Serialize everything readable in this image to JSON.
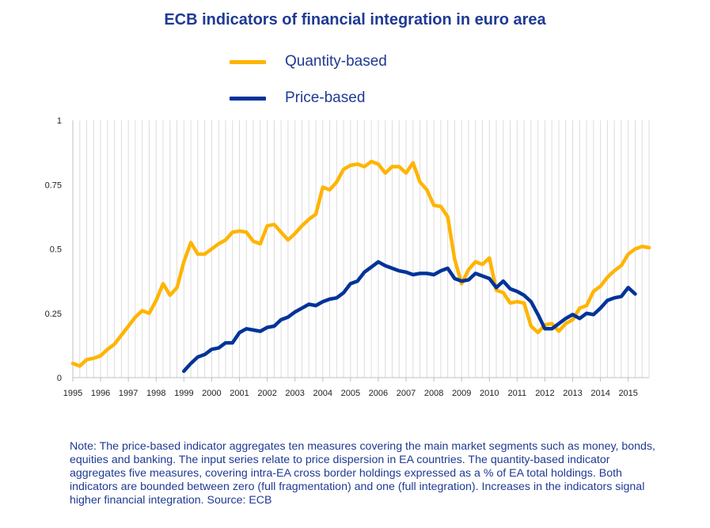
{
  "title": "ECB indicators of financial integration in euro area",
  "legend": [
    {
      "label": "Quantity-based",
      "color": "#FFB400"
    },
    {
      "label": "Price-based",
      "color": "#003399"
    }
  ],
  "note": "Note: The price-based indicator aggregates ten measures covering the main market segments such as money, bonds, equities and banking. The input series relate to price dispersion in EA countries. The quantity-based indicator aggregates five measures, covering intra-EA cross border holdings expressed as a % of EA total holdings. Both indicators are bounded between zero (full fragmentation) and one (full integration). Increases in the indicators signal higher financial integration. Source: ECB",
  "chart_data": {
    "type": "line",
    "title": "ECB indicators of financial integration in euro area",
    "xlabel": "",
    "ylabel": "",
    "xlim": [
      1995.0,
      2015.75
    ],
    "ylim": [
      0,
      1
    ],
    "yticks": [
      0,
      0.25,
      0.5,
      0.75,
      1
    ],
    "ytick_labels": [
      "0",
      "0.25",
      "0.5",
      "0.75",
      "1"
    ],
    "xticks": [
      1995,
      1996,
      1997,
      1998,
      1999,
      2000,
      2001,
      2002,
      2003,
      2004,
      2005,
      2006,
      2007,
      2008,
      2009,
      2010,
      2011,
      2012,
      2013,
      2014,
      2015
    ],
    "xtick_labels": [
      "1995",
      "1996",
      "1997",
      "1998",
      "1999",
      "2000",
      "2001",
      "2002",
      "2003",
      "2004",
      "2005",
      "2006",
      "2007",
      "2008",
      "2009",
      "2010",
      "2011",
      "2012",
      "2013",
      "2014",
      "2015"
    ],
    "grid": "vertical",
    "legend_position": "top-center",
    "series": [
      {
        "name": "Quantity-based",
        "color": "#FFB400",
        "x": [
          1995.0,
          1995.25,
          1995.5,
          1995.75,
          1996.0,
          1996.25,
          1996.5,
          1996.75,
          1997.0,
          1997.25,
          1997.5,
          1997.75,
          1998.0,
          1998.25,
          1998.5,
          1998.75,
          1999.0,
          1999.25,
          1999.5,
          1999.75,
          2000.0,
          2000.25,
          2000.5,
          2000.75,
          2001.0,
          2001.25,
          2001.5,
          2001.75,
          2002.0,
          2002.25,
          2002.5,
          2002.75,
          2003.0,
          2003.25,
          2003.5,
          2003.75,
          2004.0,
          2004.25,
          2004.5,
          2004.75,
          2005.0,
          2005.25,
          2005.5,
          2005.75,
          2006.0,
          2006.25,
          2006.5,
          2006.75,
          2007.0,
          2007.25,
          2007.5,
          2007.75,
          2008.0,
          2008.25,
          2008.5,
          2008.75,
          2009.0,
          2009.25,
          2009.5,
          2009.75,
          2010.0,
          2010.25,
          2010.5,
          2010.75,
          2011.0,
          2011.25,
          2011.5,
          2011.75,
          2012.0,
          2012.25,
          2012.5,
          2012.75,
          2013.0,
          2013.25,
          2013.5,
          2013.75,
          2014.0,
          2014.25,
          2014.5,
          2014.75,
          2015.0,
          2015.25,
          2015.5,
          2015.75
        ],
        "values": [
          0.055,
          0.045,
          0.07,
          0.075,
          0.085,
          0.11,
          0.13,
          0.165,
          0.2,
          0.235,
          0.26,
          0.25,
          0.3,
          0.365,
          0.32,
          0.35,
          0.45,
          0.525,
          0.48,
          0.48,
          0.5,
          0.52,
          0.535,
          0.565,
          0.57,
          0.565,
          0.53,
          0.52,
          0.59,
          0.595,
          0.565,
          0.535,
          0.56,
          0.59,
          0.615,
          0.635,
          0.74,
          0.73,
          0.76,
          0.81,
          0.825,
          0.83,
          0.82,
          0.84,
          0.83,
          0.795,
          0.82,
          0.82,
          0.795,
          0.835,
          0.76,
          0.73,
          0.67,
          0.665,
          0.625,
          0.46,
          0.365,
          0.42,
          0.45,
          0.44,
          0.465,
          0.34,
          0.33,
          0.29,
          0.295,
          0.29,
          0.2,
          0.175,
          0.205,
          0.21,
          0.18,
          0.21,
          0.225,
          0.27,
          0.28,
          0.335,
          0.355,
          0.39,
          0.415,
          0.435,
          0.48,
          0.5,
          0.51,
          0.505
        ]
      },
      {
        "name": "Price-based",
        "color": "#003399",
        "x": [
          1999.0,
          1999.25,
          1999.5,
          1999.75,
          2000.0,
          2000.25,
          2000.5,
          2000.75,
          2001.0,
          2001.25,
          2001.5,
          2001.75,
          2002.0,
          2002.25,
          2002.5,
          2002.75,
          2003.0,
          2003.25,
          2003.5,
          2003.75,
          2004.0,
          2004.25,
          2004.5,
          2004.75,
          2005.0,
          2005.25,
          2005.5,
          2005.75,
          2006.0,
          2006.25,
          2006.5,
          2006.75,
          2007.0,
          2007.25,
          2007.5,
          2007.75,
          2008.0,
          2008.25,
          2008.5,
          2008.75,
          2009.0,
          2009.25,
          2009.5,
          2009.75,
          2010.0,
          2010.25,
          2010.5,
          2010.75,
          2011.0,
          2011.25,
          2011.5,
          2011.75,
          2012.0,
          2012.25,
          2012.5,
          2012.75,
          2013.0,
          2013.25,
          2013.5,
          2013.75,
          2014.0,
          2014.25,
          2014.5,
          2014.75,
          2015.0,
          2015.25
        ],
        "values": [
          0.025,
          0.055,
          0.08,
          0.09,
          0.11,
          0.115,
          0.135,
          0.135,
          0.175,
          0.19,
          0.185,
          0.18,
          0.195,
          0.2,
          0.225,
          0.235,
          0.255,
          0.27,
          0.285,
          0.28,
          0.295,
          0.305,
          0.31,
          0.33,
          0.365,
          0.375,
          0.41,
          0.43,
          0.45,
          0.435,
          0.425,
          0.415,
          0.41,
          0.4,
          0.405,
          0.405,
          0.4,
          0.415,
          0.425,
          0.385,
          0.375,
          0.38,
          0.405,
          0.395,
          0.385,
          0.35,
          0.375,
          0.345,
          0.335,
          0.32,
          0.295,
          0.245,
          0.19,
          0.19,
          0.21,
          0.23,
          0.245,
          0.23,
          0.25,
          0.245,
          0.27,
          0.3,
          0.31,
          0.315,
          0.35,
          0.325
        ]
      }
    ]
  }
}
